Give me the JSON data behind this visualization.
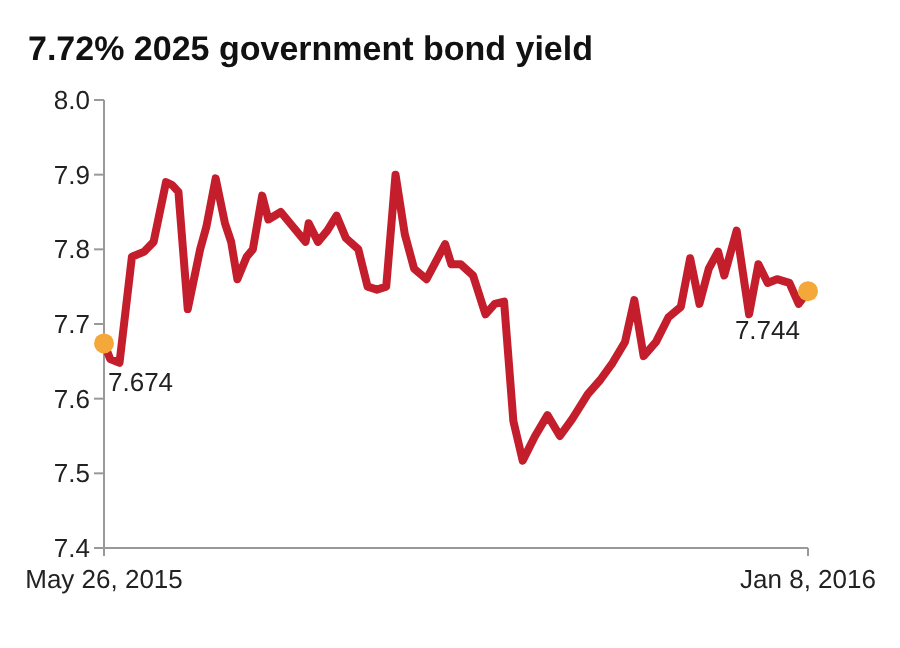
{
  "chart_data": {
    "type": "line",
    "title": "7.72% 2025 government bond yield",
    "x": [
      "2015-05-26",
      "2015-05-28",
      "2015-05-31",
      "2015-06-04",
      "2015-06-08",
      "2015-06-11",
      "2015-06-15",
      "2015-06-17",
      "2015-06-19",
      "2015-06-22",
      "2015-06-26",
      "2015-06-28",
      "2015-07-01",
      "2015-07-04",
      "2015-07-06",
      "2015-07-08",
      "2015-07-11",
      "2015-07-13",
      "2015-07-16",
      "2015-07-18",
      "2015-07-22",
      "2015-07-26",
      "2015-07-30",
      "2015-07-31",
      "2015-08-03",
      "2015-08-06",
      "2015-08-09",
      "2015-08-12",
      "2015-08-16",
      "2015-08-19",
      "2015-08-22",
      "2015-08-25",
      "2015-08-28",
      "2015-08-31",
      "2015-09-03",
      "2015-09-07",
      "2015-09-13",
      "2015-09-15",
      "2015-09-18",
      "2015-09-22",
      "2015-09-26",
      "2015-09-29",
      "2015-10-02",
      "2015-10-05",
      "2015-10-08",
      "2015-10-12",
      "2015-10-16",
      "2015-10-20",
      "2015-10-24",
      "2015-10-29",
      "2015-11-02",
      "2015-11-06",
      "2015-11-10",
      "2015-11-13",
      "2015-11-16",
      "2015-11-20",
      "2015-11-24",
      "2015-11-28",
      "2015-12-01",
      "2015-12-04",
      "2015-12-07",
      "2015-12-10",
      "2015-12-12",
      "2015-12-16",
      "2015-12-20",
      "2015-12-23",
      "2015-12-26",
      "2015-12-29",
      "2016-01-02",
      "2016-01-05",
      "2016-01-08"
    ],
    "series": [
      {
        "color": "#c41e2c",
        "values": [
          7.674,
          7.653,
          7.648,
          7.79,
          7.797,
          7.81,
          7.89,
          7.886,
          7.877,
          7.72,
          7.8,
          7.83,
          7.895,
          7.835,
          7.81,
          7.76,
          7.79,
          7.8,
          7.872,
          7.84,
          7.85,
          7.83,
          7.81,
          7.835,
          7.81,
          7.825,
          7.845,
          7.815,
          7.8,
          7.75,
          7.746,
          7.75,
          7.9,
          7.82,
          7.774,
          7.76,
          7.807,
          7.78,
          7.78,
          7.765,
          7.713,
          7.727,
          7.73,
          7.57,
          7.517,
          7.55,
          7.578,
          7.55,
          7.573,
          7.606,
          7.625,
          7.648,
          7.676,
          7.732,
          7.657,
          7.676,
          7.709,
          7.723,
          7.788,
          7.727,
          7.774,
          7.797,
          7.765,
          7.825,
          7.713,
          7.78,
          7.755,
          7.76,
          7.755,
          7.727,
          7.744
        ]
      },
      {
        "type": "scatter",
        "color": "#f5a83a",
        "x": [
          "2015-05-26",
          "2016-01-08"
        ],
        "values": [
          7.674,
          7.744
        ]
      }
    ],
    "xlim": [
      "2015-05-26",
      "2016-01-08"
    ],
    "xticks": [
      {
        "value": "2015-05-26",
        "label": "May 26, 2015"
      },
      {
        "value": "2016-01-08",
        "label": "Jan 8, 2016"
      }
    ],
    "ylim": [
      7.4,
      8.0
    ],
    "yticks": [
      7.4,
      7.5,
      7.6,
      7.7,
      7.8,
      7.9,
      {
        "value": 8.0,
        "label": "8.0"
      }
    ],
    "annotations": [
      {
        "text": "7.674",
        "x": "2015-05-26",
        "y": 7.674
      },
      {
        "text": "7.744",
        "x": "2016-01-08",
        "y": 7.744
      }
    ],
    "grid": false
  }
}
